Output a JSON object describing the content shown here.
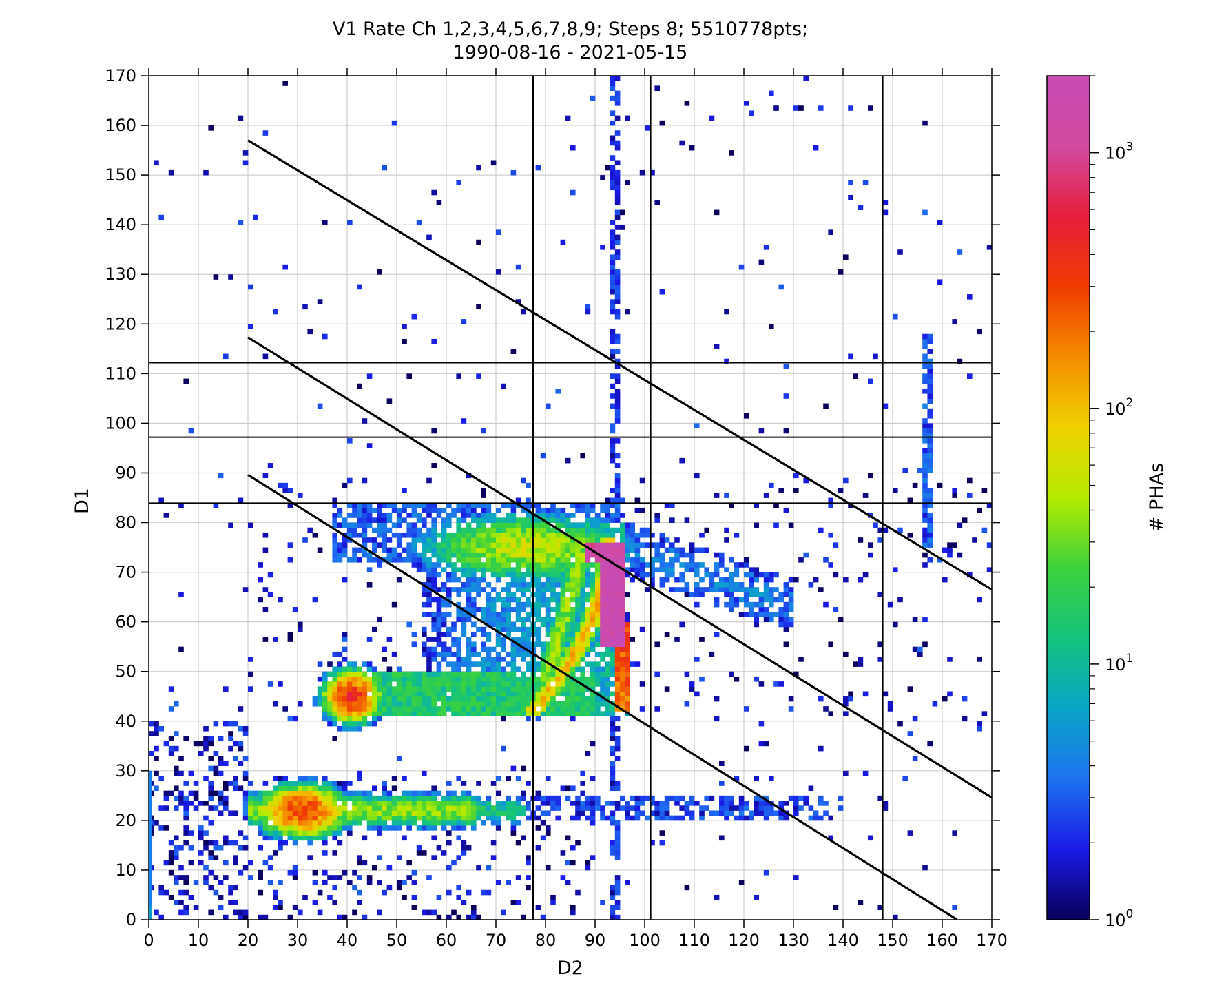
{
  "chart_data": {
    "type": "heatmap",
    "title": "V1 Rate Ch 1,2,3,4,5,6,7,8,9; Steps 8; 5510778pts;",
    "subtitle": "1990-08-16 - 2021-05-15",
    "xlabel": "D2",
    "ylabel": "D1",
    "xlim": [
      0,
      170
    ],
    "ylim": [
      0,
      170
    ],
    "xticks": [
      "0",
      "10",
      "20",
      "30",
      "40",
      "50",
      "60",
      "70",
      "80",
      "90",
      "100",
      "110",
      "120",
      "130",
      "140",
      "150",
      "160",
      "170"
    ],
    "yticks": [
      "0",
      "10",
      "20",
      "30",
      "40",
      "50",
      "60",
      "70",
      "80",
      "90",
      "100",
      "110",
      "120",
      "130",
      "140",
      "150",
      "160",
      "170"
    ],
    "grid": true,
    "colorbar": {
      "label": "# PHAs",
      "scale": "log",
      "range": [
        1,
        2000
      ],
      "ticks": [
        {
          "value": 1,
          "base": "10",
          "exp": "0"
        },
        {
          "value": 10,
          "base": "10",
          "exp": "1"
        },
        {
          "value": 100,
          "base": "10",
          "exp": "2"
        },
        {
          "value": 1000,
          "base": "10",
          "exp": "3"
        }
      ],
      "colors": [
        "#08005a",
        "#1a1ae6",
        "#1e73f0",
        "#0aa5c8",
        "#14c37d",
        "#3cd23c",
        "#b4eb00",
        "#f0d200",
        "#f58c00",
        "#f03c00",
        "#e61e3c",
        "#d24ba0",
        "#c84bb4"
      ]
    },
    "overlay_lines": [
      {
        "type": "vertical",
        "x": 77.5
      },
      {
        "type": "vertical",
        "x": 101.2
      },
      {
        "type": "vertical",
        "x": 148.0
      },
      {
        "type": "horizontal",
        "y": 112.2
      },
      {
        "type": "horizontal",
        "y": 97.2
      },
      {
        "type": "horizontal",
        "y": 83.9
      },
      {
        "type": "diagonal",
        "x0": 20,
        "y0": 157.0,
        "x1": 170,
        "y1": 66.5
      },
      {
        "type": "diagonal",
        "x0": 20,
        "y0": 117.3,
        "x1": 170,
        "y1": 24.6
      },
      {
        "type": "diagonal",
        "x0": 20,
        "y0": 89.6,
        "x1": 163,
        "y1": 0
      }
    ],
    "density_regions": [
      {
        "label": "hotspot-41-45",
        "x": 41,
        "y": 45,
        "peak": 400
      },
      {
        "label": "hotspot-31-22",
        "x": 31,
        "y": 22,
        "peak": 300
      },
      {
        "label": "band-d1-45",
        "x_range": [
          37,
          97
        ],
        "y": 45,
        "level": 20
      },
      {
        "label": "band-d1-22",
        "x_range": [
          22,
          75
        ],
        "y": 22,
        "level": 40
      },
      {
        "label": "ridge-upper",
        "x_range": [
          60,
          92
        ],
        "y_range": [
          80,
          72
        ],
        "level": 60
      },
      {
        "label": "peak-column",
        "x_range": [
          91,
          96
        ],
        "y_range": [
          55,
          76
        ],
        "peak": 2000
      },
      {
        "label": "column-d2-95",
        "x": 94,
        "y_range": [
          42,
          76
        ],
        "level": 200
      },
      {
        "label": "curve-ridge",
        "x_range": [
          74,
          93
        ],
        "y_range": [
          42,
          70
        ],
        "level": 40
      }
    ]
  }
}
